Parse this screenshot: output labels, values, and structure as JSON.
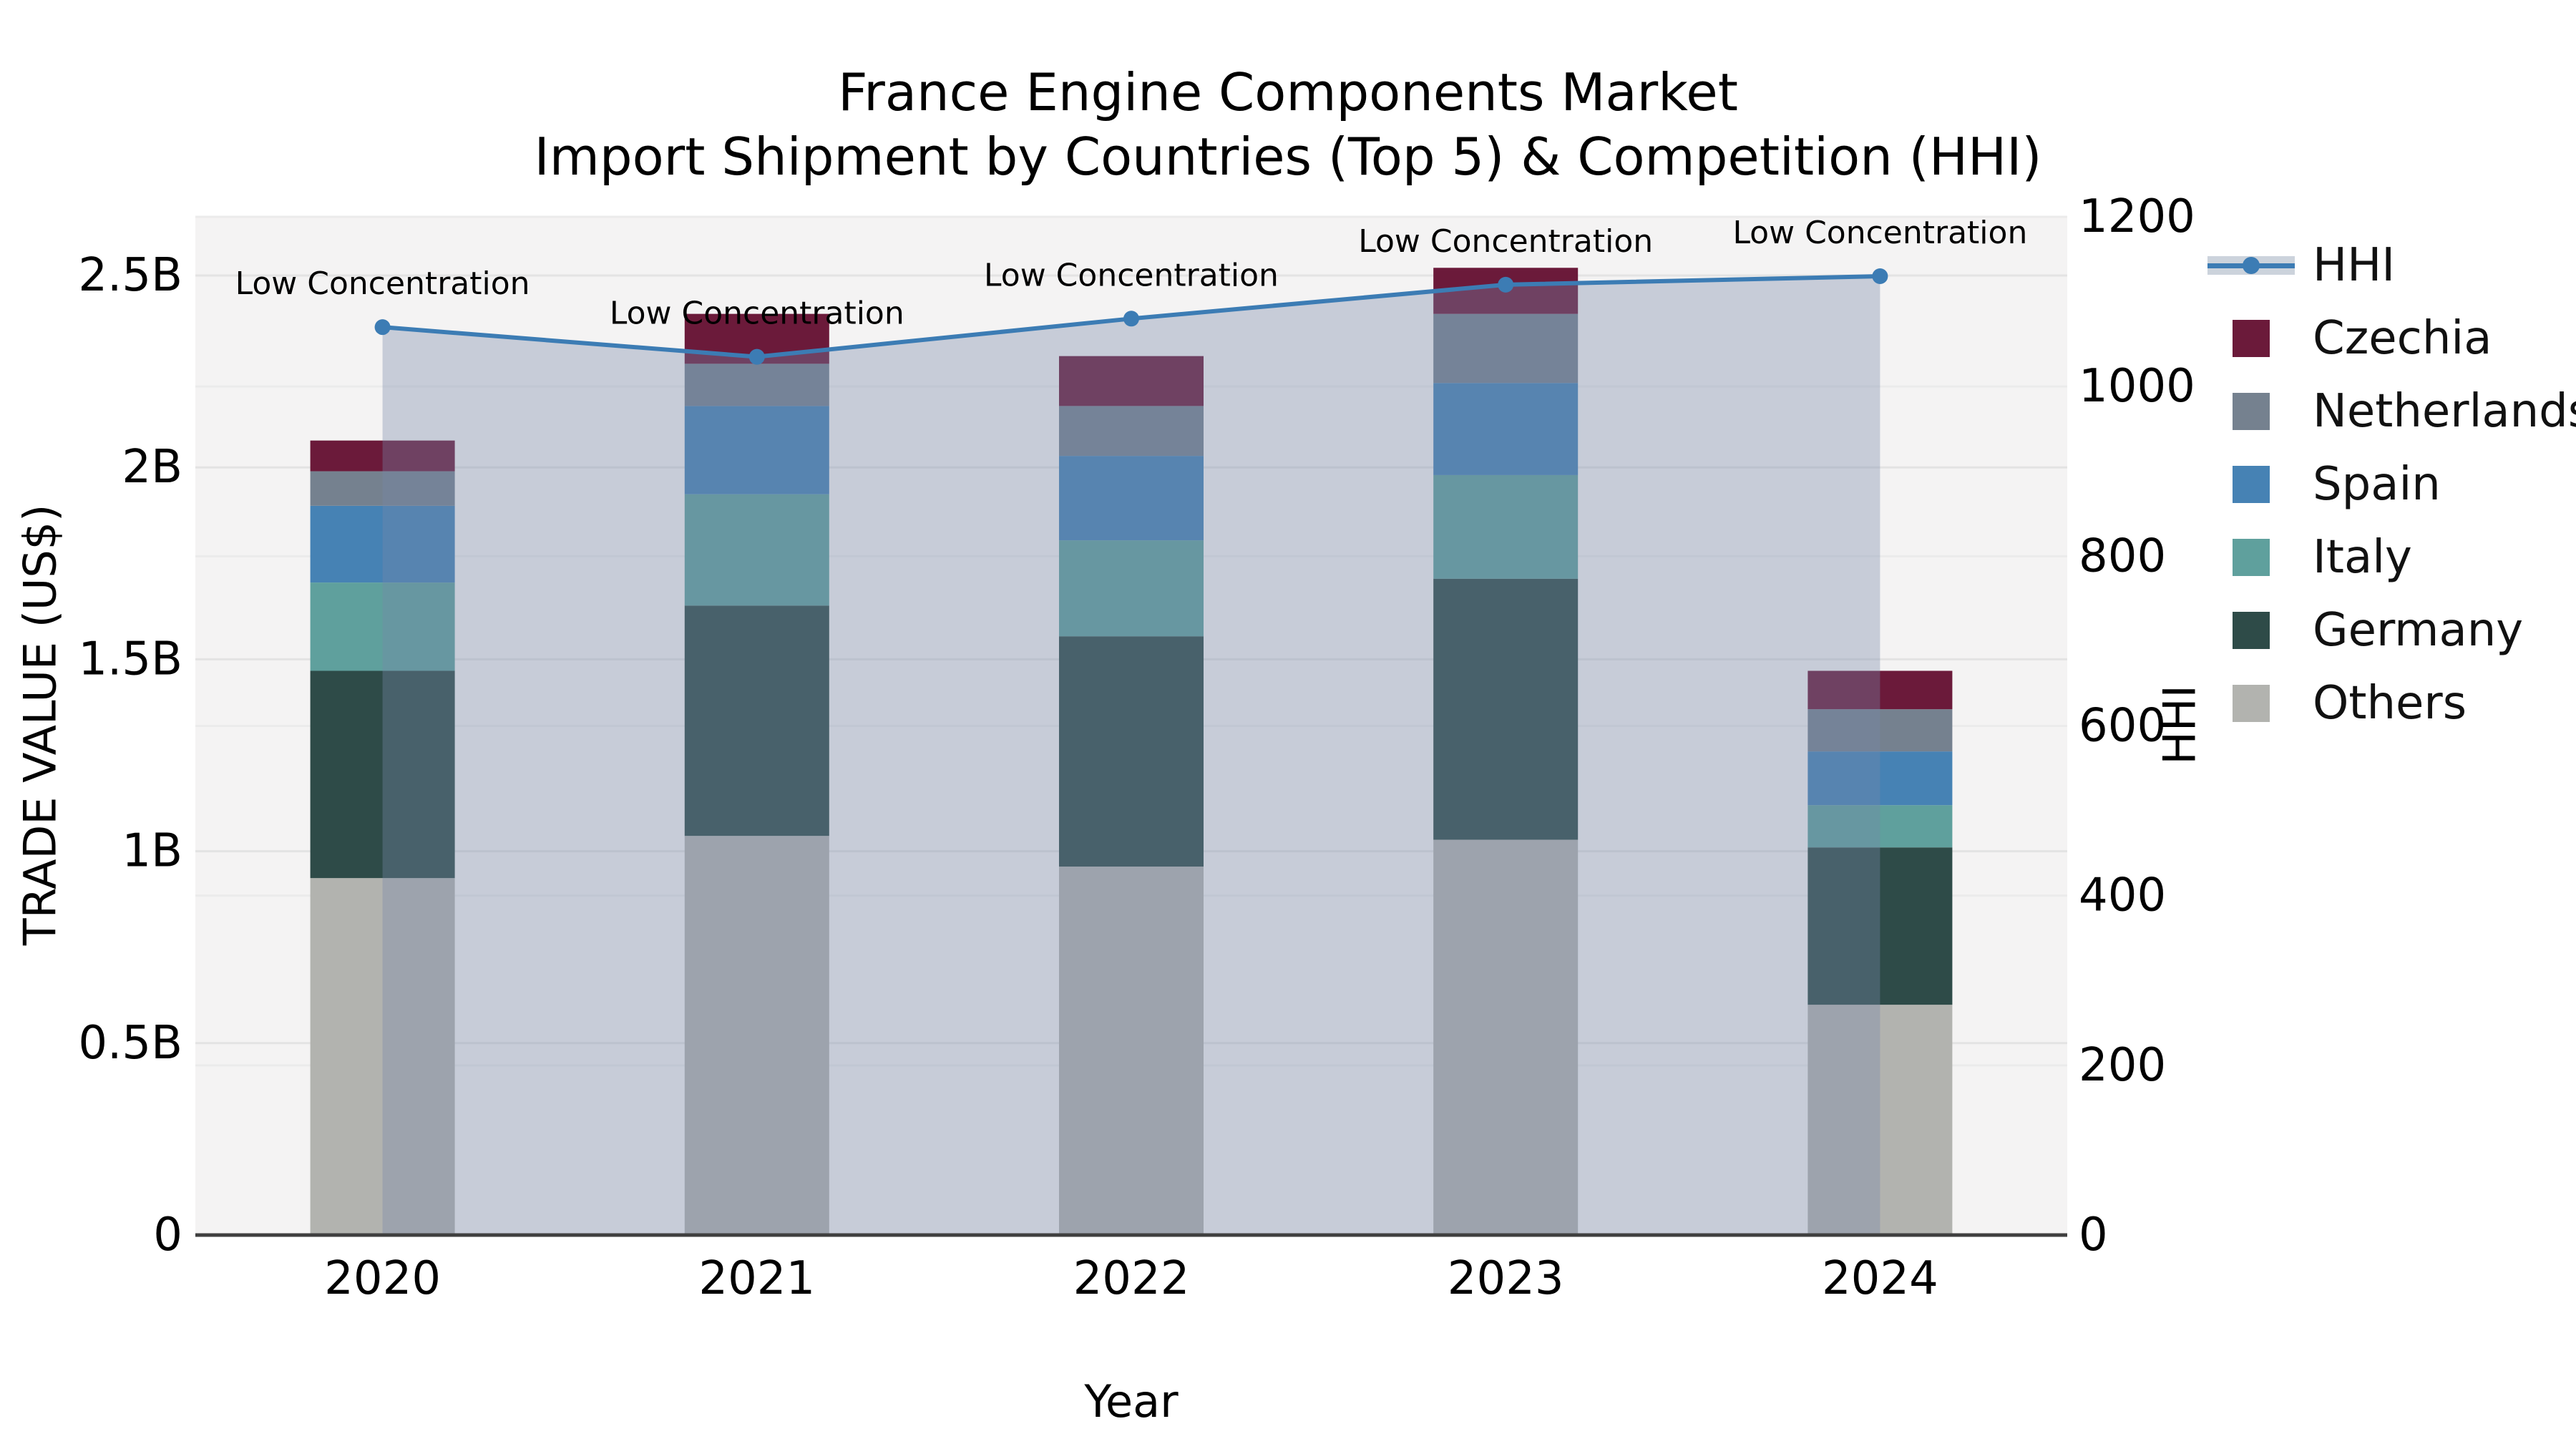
{
  "title": {
    "line1": "France Engine Components Market",
    "line2": "Import Shipment by Countries (Top 5) & Competition (HHI)"
  },
  "chart_data": {
    "type": "bar",
    "subtype": "stacked-bars-with-line-overlay-dual-axis",
    "categories": [
      "2020",
      "2021",
      "2022",
      "2023",
      "2024"
    ],
    "unit": "billion US$",
    "series": [
      {
        "name": "Others",
        "color": "#b2b3af",
        "values": [
          0.93,
          1.04,
          0.96,
          1.03,
          0.6
        ]
      },
      {
        "name": "Germany",
        "color": "#2e4b48",
        "values": [
          0.54,
          0.6,
          0.6,
          0.68,
          0.41
        ]
      },
      {
        "name": "Italy",
        "color": "#5fa09d",
        "values": [
          0.23,
          0.29,
          0.25,
          0.27,
          0.11
        ]
      },
      {
        "name": "Spain",
        "color": "#4682b4",
        "values": [
          0.2,
          0.23,
          0.22,
          0.24,
          0.14
        ]
      },
      {
        "name": "Netherlands",
        "color": "#75818f",
        "values": [
          0.09,
          0.11,
          0.13,
          0.18,
          0.11
        ]
      },
      {
        "name": "Czechia",
        "color": "#6b1a3a",
        "values": [
          0.08,
          0.13,
          0.13,
          0.12,
          0.1
        ]
      }
    ],
    "totals": [
      2.07,
      2.4,
      2.29,
      2.52,
      1.47
    ],
    "hhi": {
      "name": "HHI",
      "axis": "right",
      "line_color": "#3c7cb4",
      "area_fill_color": "rgba(119,136,170,0.36)",
      "values": [
        1070,
        1035,
        1080,
        1120,
        1130
      ]
    },
    "annotations": [
      "Low Concentration",
      "Low Concentration",
      "Low Concentration",
      "Low Concentration",
      "Low Concentration"
    ],
    "xaxis": {
      "title": "Year",
      "labels": [
        "2020",
        "2021",
        "2022",
        "2023",
        "2024"
      ]
    },
    "yaxis_left": {
      "title": "TRADE VALUE (US$)",
      "range": [
        0,
        2.65
      ],
      "ticks": [
        {
          "value": 0,
          "label": "0"
        },
        {
          "value": 0.5,
          "label": "0.5B"
        },
        {
          "value": 1,
          "label": "1B"
        },
        {
          "value": 1.5,
          "label": "1.5B"
        },
        {
          "value": 2,
          "label": "2B"
        },
        {
          "value": 2.5,
          "label": "2.5B"
        }
      ]
    },
    "yaxis_right": {
      "title": "HHI",
      "range": [
        0,
        1200
      ],
      "ticks": [
        {
          "value": 0,
          "label": "0"
        },
        {
          "value": 200,
          "label": "200"
        },
        {
          "value": 400,
          "label": "400"
        },
        {
          "value": 600,
          "label": "600"
        },
        {
          "value": 800,
          "label": "800"
        },
        {
          "value": 1000,
          "label": "1000"
        },
        {
          "value": 1200,
          "label": "1200"
        }
      ]
    },
    "legend_order": [
      "HHI",
      "Czechia",
      "Netherlands",
      "Spain",
      "Italy",
      "Germany",
      "Others"
    ],
    "legend_position": "outside-top-right",
    "grid": "horizontal-both-axes",
    "style": {
      "plot_bg": "#f4f3f3",
      "grid_left": "#e3e3e3",
      "grid_right": "#ebebeb",
      "axis_line": "#3f3f3f",
      "legend_band": "#ccd3dc",
      "text_color": "#000000"
    }
  }
}
